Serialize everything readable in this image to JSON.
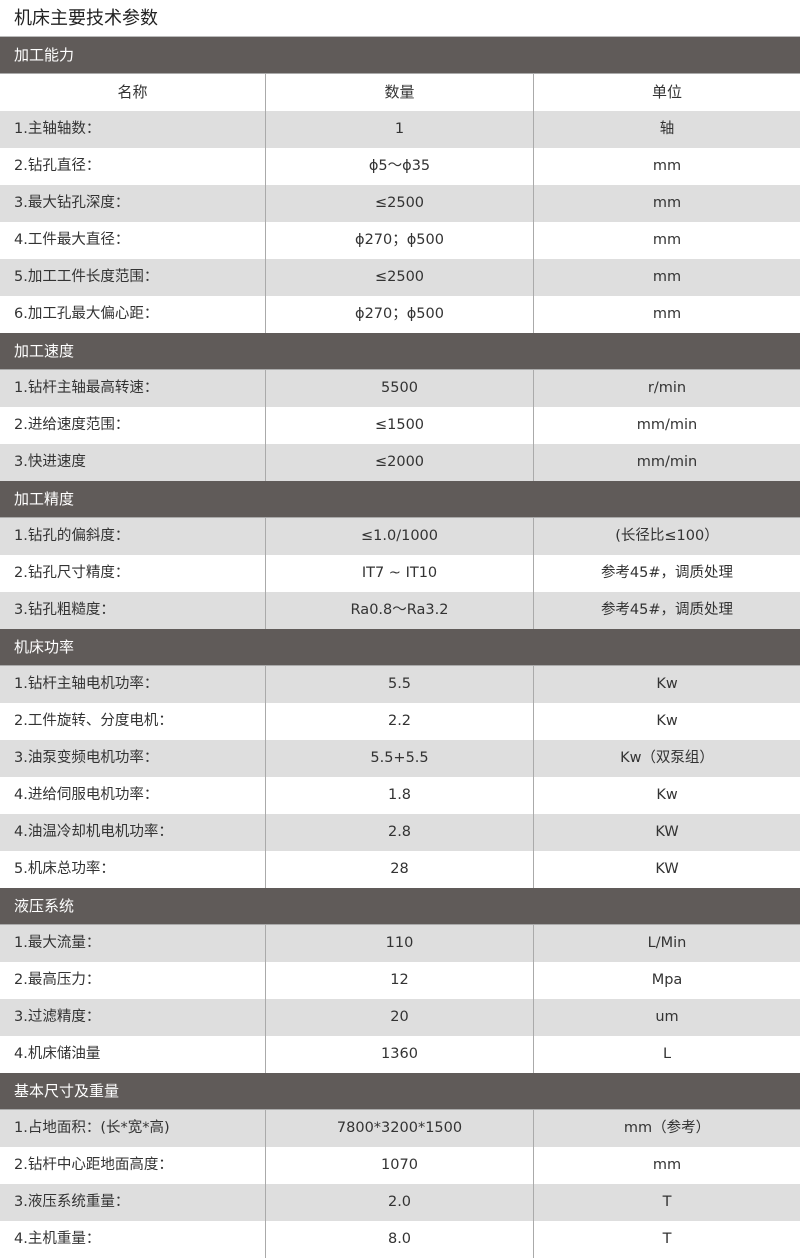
{
  "title": "机床主要技术参数",
  "columns": [
    "名称",
    "数量",
    "单位"
  ],
  "sections": [
    {
      "name": "加工能力",
      "rows": [
        [
          "1.主轴轴数：",
          "1",
          "轴"
        ],
        [
          "2.钻孔直径：",
          "ϕ5～ϕ35",
          "mm"
        ],
        [
          "3.最大钻孔深度：",
          "≤2500",
          "mm"
        ],
        [
          "4.工件最大直径：",
          "ϕ270；ϕ500",
          "mm"
        ],
        [
          "5.加工工件长度范围：",
          "≤2500",
          "mm"
        ],
        [
          "6.加工孔最大偏心距：",
          "ϕ270；ϕ500",
          "mm"
        ]
      ]
    },
    {
      "name": "加工速度",
      "rows": [
        [
          "1.钻杆主轴最高转速：",
          "5500",
          "r/min"
        ],
        [
          "2.进给速度范围：",
          "≤1500",
          "mm/min"
        ],
        [
          "3.快进速度",
          "≤2000",
          "mm/min"
        ]
      ]
    },
    {
      "name": "加工精度",
      "rows": [
        [
          "1.钻孔的偏斜度：",
          "≤1.0/1000",
          "(长径比≤100）"
        ],
        [
          "2.钻孔尺寸精度：",
          "IT7 ~ IT10",
          "参考45#，调质处理"
        ],
        [
          "3.钻孔粗糙度：",
          "Ra0.8～Ra3.2",
          "参考45#，调质处理"
        ]
      ]
    },
    {
      "name": "机床功率",
      "rows": [
        [
          "1.钻杆主轴电机功率：",
          "5.5",
          "Kw"
        ],
        [
          "2.工件旋转、分度电机：",
          "2.2",
          "Kw"
        ],
        [
          "3.油泵变频电机功率：",
          "5.5+5.5",
          "Kw（双泵组）"
        ],
        [
          "4.进给伺服电机功率：",
          "1.8",
          "Kw"
        ],
        [
          "4.油温冷却机电机功率：",
          "2.8",
          "KW"
        ],
        [
          "5.机床总功率：",
          "28",
          "KW"
        ]
      ]
    },
    {
      "name": "液压系统",
      "rows": [
        [
          "1.最大流量：",
          "110",
          "L/Min"
        ],
        [
          "2.最高压力：",
          "12",
          "Mpa"
        ],
        [
          "3.过滤精度：",
          "20",
          "um"
        ],
        [
          "4.机床储油量",
          "1360",
          "L"
        ]
      ]
    },
    {
      "name": "基本尺寸及重量",
      "rows": [
        [
          "1.占地面积：(长*宽*高)",
          "7800*3200*1500",
          "mm（参考）"
        ],
        [
          "2.钻杆中心距地面高度：",
          "1070",
          "mm"
        ],
        [
          "3.液压系统重量：",
          "2.0",
          "T"
        ],
        [
          "4.主机重量：",
          "8.0",
          "T"
        ]
      ]
    }
  ]
}
